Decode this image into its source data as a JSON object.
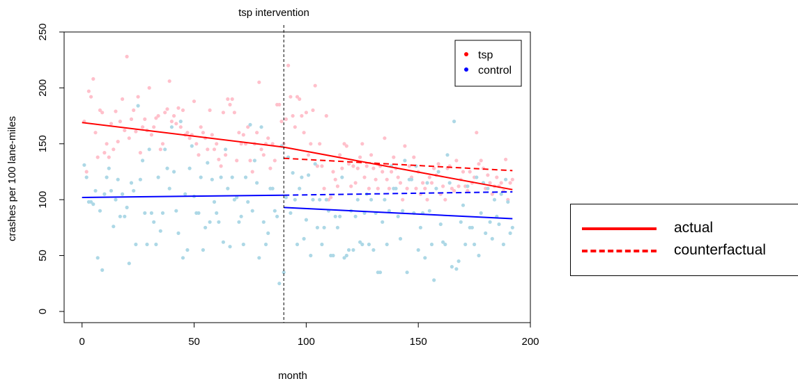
{
  "chart_data": {
    "type": "scatter",
    "title": "tsp intervention",
    "xlabel": "month",
    "ylabel": "crashes per 100 lane-miles",
    "xlim": [
      -8,
      200
    ],
    "ylim": [
      -10,
      250
    ],
    "xticks": [
      "0",
      "50",
      "100",
      "150",
      "200"
    ],
    "yticks": [
      "0",
      "50",
      "100",
      "150",
      "200",
      "250"
    ],
    "grid": false,
    "intervention_month": 90,
    "legend": {
      "placement": "top-right",
      "entries": [
        {
          "label": "tsp",
          "color": "#ff0000"
        },
        {
          "label": "control",
          "color": "#0000ff"
        }
      ]
    },
    "series": [
      {
        "name": "tsp",
        "color": "#ffc0cb",
        "x": [
          1,
          2,
          3,
          4,
          5,
          6,
          7,
          8,
          9,
          10,
          11,
          12,
          13,
          14,
          15,
          16,
          17,
          18,
          19,
          20,
          21,
          22,
          23,
          24,
          25,
          26,
          27,
          28,
          29,
          30,
          31,
          32,
          33,
          34,
          35,
          36,
          37,
          38,
          39,
          40,
          41,
          42,
          43,
          44,
          45,
          46,
          47,
          48,
          49,
          50,
          51,
          52,
          53,
          54,
          55,
          56,
          57,
          58,
          59,
          60,
          61,
          62,
          63,
          64,
          65,
          66,
          67,
          68,
          69,
          70,
          71,
          72,
          73,
          74,
          75,
          76,
          77,
          78,
          79,
          80,
          81,
          82,
          83,
          84,
          85,
          86,
          87,
          88,
          89,
          90,
          91,
          92,
          93,
          94,
          95,
          96,
          97,
          98,
          99,
          100,
          101,
          102,
          103,
          104,
          105,
          106,
          107,
          108,
          109,
          110,
          111,
          112,
          113,
          114,
          115,
          116,
          117,
          118,
          119,
          120,
          121,
          122,
          123,
          124,
          125,
          126,
          127,
          128,
          129,
          130,
          131,
          132,
          133,
          134,
          135,
          136,
          137,
          138,
          139,
          140,
          141,
          142,
          143,
          144,
          145,
          146,
          147,
          148,
          149,
          150,
          151,
          152,
          153,
          154,
          155,
          156,
          157,
          158,
          159,
          160,
          161,
          162,
          163,
          164,
          165,
          166,
          167,
          168,
          169,
          170,
          171,
          172,
          173,
          174,
          175,
          176,
          177,
          178,
          179,
          180,
          181,
          182,
          183,
          184,
          185,
          186,
          187,
          188,
          189,
          190,
          191,
          192
        ],
        "y": [
          170,
          125,
          197,
          192,
          208,
          160,
          138,
          180,
          178,
          142,
          150,
          138,
          168,
          145,
          179,
          152,
          170,
          190,
          162,
          228,
          155,
          172,
          180,
          161,
          192,
          142,
          165,
          172,
          162,
          200,
          158,
          165,
          173,
          175,
          145,
          150,
          178,
          181,
          206,
          170,
          175,
          168,
          182,
          165,
          180,
          158,
          160,
          155,
          158,
          188,
          150,
          140,
          165,
          160,
          155,
          145,
          180,
          158,
          145,
          150,
          136,
          130,
          178,
          140,
          190,
          185,
          190,
          178,
          135,
          160,
          150,
          158,
          150,
          165,
          135,
          125,
          150,
          160,
          205,
          145,
          140,
          150,
          155,
          128,
          150,
          135,
          185,
          185,
          170,
          150,
          172,
          220,
          192,
          175,
          165,
          192,
          190,
          175,
          160,
          178,
          140,
          150,
          180,
          202,
          130,
          150,
          130,
          110,
          175,
          100,
          102,
          125,
          118,
          112,
          140,
          128,
          150,
          148,
          132,
          112,
          130,
          115,
          128,
          138,
          150,
          120,
          130,
          110,
          140,
          128,
          118,
          110,
          130,
          125,
          155,
          118,
          110,
          125,
          138,
          128,
          120,
          115,
          100,
          148,
          110,
          130,
          120,
          138,
          110,
          125,
          105,
          115,
          110,
          100,
          120,
          115,
          128,
          122,
          132,
          105,
          112,
          100,
          128,
          130,
          110,
          108,
          135,
          112,
          118,
          125,
          112,
          108,
          125,
          115,
          120,
          160,
          132,
          135,
          128,
          110,
          122,
          115,
          105,
          112,
          120,
          112,
          115,
          108,
          136,
          100,
          115,
          118
        ]
      },
      {
        "name": "control",
        "color": "#add8e6",
        "x": [
          1,
          2,
          3,
          4,
          5,
          6,
          7,
          8,
          9,
          10,
          11,
          12,
          13,
          14,
          15,
          16,
          17,
          18,
          19,
          20,
          21,
          22,
          23,
          24,
          25,
          26,
          27,
          28,
          29,
          30,
          31,
          32,
          33,
          34,
          35,
          36,
          37,
          38,
          39,
          40,
          41,
          42,
          43,
          44,
          45,
          46,
          47,
          48,
          49,
          50,
          51,
          52,
          53,
          54,
          55,
          56,
          57,
          58,
          59,
          60,
          61,
          62,
          63,
          64,
          65,
          66,
          67,
          68,
          69,
          70,
          71,
          72,
          73,
          74,
          75,
          76,
          77,
          78,
          79,
          80,
          81,
          82,
          83,
          84,
          85,
          86,
          87,
          88,
          89,
          90,
          91,
          92,
          93,
          94,
          95,
          96,
          97,
          98,
          99,
          100,
          101,
          102,
          103,
          104,
          105,
          106,
          107,
          108,
          109,
          110,
          111,
          112,
          113,
          114,
          115,
          116,
          117,
          118,
          119,
          120,
          121,
          122,
          123,
          124,
          125,
          126,
          127,
          128,
          129,
          130,
          131,
          132,
          133,
          134,
          135,
          136,
          137,
          138,
          139,
          140,
          141,
          142,
          143,
          144,
          145,
          146,
          147,
          148,
          149,
          150,
          151,
          152,
          153,
          154,
          155,
          156,
          157,
          158,
          159,
          160,
          161,
          162,
          163,
          164,
          165,
          166,
          167,
          168,
          169,
          170,
          171,
          172,
          173,
          174,
          175,
          176,
          177,
          178,
          179,
          180,
          181,
          182,
          183,
          184,
          185,
          186,
          187,
          188,
          189,
          190,
          191,
          192
        ],
        "y": [
          131,
          120,
          98,
          98,
          96,
          108,
          48,
          90,
          37,
          105,
          120,
          128,
          108,
          76,
          100,
          118,
          85,
          105,
          85,
          93,
          43,
          115,
          108,
          60,
          184,
          118,
          135,
          88,
          60,
          145,
          88,
          80,
          60,
          120,
          72,
          88,
          145,
          128,
          110,
          165,
          125,
          90,
          70,
          170,
          48,
          105,
          55,
          128,
          148,
          103,
          88,
          88,
          120,
          55,
          75,
          133,
          80,
          118,
          98,
          88,
          80,
          120,
          62,
          145,
          110,
          58,
          120,
          100,
          102,
          80,
          85,
          60,
          120,
          98,
          167,
          90,
          135,
          115,
          48,
          165,
          80,
          60,
          70,
          110,
          110,
          90,
          85,
          25,
          148,
          35,
          102,
          138,
          88,
          124,
          100,
          60,
          110,
          120,
          65,
          82,
          122,
          50,
          100,
          132,
          75,
          100,
          60,
          75,
          100,
          90,
          50,
          50,
          85,
          75,
          85,
          120,
          48,
          50,
          55,
          90,
          55,
          85,
          100,
          62,
          60,
          88,
          105,
          60,
          100,
          55,
          88,
          35,
          35,
          80,
          100,
          60,
          90,
          130,
          110,
          110,
          85,
          65,
          90,
          135,
          35,
          118,
          118,
          88,
          130,
          55,
          75,
          88,
          48,
          115,
          90,
          60,
          28,
          110,
          125,
          78,
          62,
          60,
          140,
          115,
          40,
          170,
          38,
          45,
          80,
          95,
          60,
          112,
          75,
          75,
          60,
          120,
          50,
          88,
          115,
          70,
          110,
          80,
          65,
          100,
          85,
          78,
          105,
          60,
          118,
          98,
          70,
          75
        ]
      }
    ],
    "fits": [
      {
        "group": "tsp",
        "style": "actual",
        "color": "#ff0000",
        "x": [
          0,
          90
        ],
        "y": [
          169,
          147
        ]
      },
      {
        "group": "tsp",
        "style": "actual",
        "color": "#ff0000",
        "x": [
          90,
          192
        ],
        "y": [
          147,
          109
        ]
      },
      {
        "group": "tsp",
        "style": "counterfactual",
        "color": "#ff0000",
        "x": [
          90,
          192
        ],
        "y": [
          137,
          126
        ]
      },
      {
        "group": "control",
        "style": "actual",
        "color": "#0000ff",
        "x": [
          0,
          90
        ],
        "y": [
          102,
          104
        ]
      },
      {
        "group": "control",
        "style": "actual",
        "color": "#0000ff",
        "x": [
          90,
          192
        ],
        "y": [
          93,
          83
        ]
      },
      {
        "group": "control",
        "style": "counterfactual",
        "color": "#0000ff",
        "x": [
          90,
          192
        ],
        "y": [
          104,
          107
        ]
      }
    ]
  },
  "line_key": {
    "actual_label": "actual",
    "counterfactual_label": "counterfactual",
    "color": "#ff0000"
  }
}
